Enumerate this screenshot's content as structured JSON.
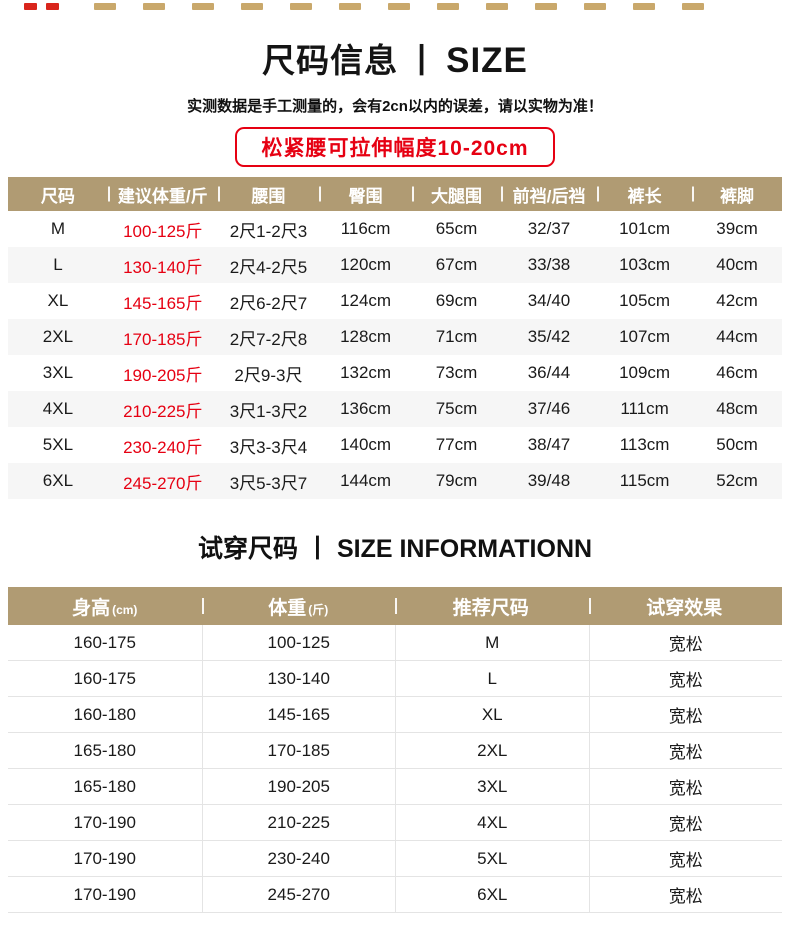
{
  "header": {
    "title_cn": "尺码信息",
    "divider": "丨",
    "title_en": "SIZE",
    "subtitle": "实测数据是手工测量的，会有2cn以内的误差，请以实物为准！",
    "stretch_badge": "松紧腰可拉伸幅度10-20cm"
  },
  "size_table": {
    "headers": [
      "尺码",
      "建议体重/斤",
      "腰围",
      "臀围",
      "大腿围",
      "前裆/后裆",
      "裤长",
      "裤脚"
    ],
    "rows": [
      {
        "size": "M",
        "weight": "100-125斤",
        "waist": "2尺1-2尺3",
        "hip": "116cm",
        "thigh": "65cm",
        "rise": "32/37",
        "length": "101cm",
        "hem": "39cm"
      },
      {
        "size": "L",
        "weight": "130-140斤",
        "waist": "2尺4-2尺5",
        "hip": "120cm",
        "thigh": "67cm",
        "rise": "33/38",
        "length": "103cm",
        "hem": "40cm"
      },
      {
        "size": "XL",
        "weight": "145-165斤",
        "waist": "2尺6-2尺7",
        "hip": "124cm",
        "thigh": "69cm",
        "rise": "34/40",
        "length": "105cm",
        "hem": "42cm"
      },
      {
        "size": "2XL",
        "weight": "170-185斤",
        "waist": "2尺7-2尺8",
        "hip": "128cm",
        "thigh": "71cm",
        "rise": "35/42",
        "length": "107cm",
        "hem": "44cm"
      },
      {
        "size": "3XL",
        "weight": "190-205斤",
        "waist": "2尺9-3尺",
        "hip": "132cm",
        "thigh": "73cm",
        "rise": "36/44",
        "length": "109cm",
        "hem": "46cm"
      },
      {
        "size": "4XL",
        "weight": "210-225斤",
        "waist": "3尺1-3尺2",
        "hip": "136cm",
        "thigh": "75cm",
        "rise": "37/46",
        "length": "111cm",
        "hem": "48cm"
      },
      {
        "size": "5XL",
        "weight": "230-240斤",
        "waist": "3尺3-3尺4",
        "hip": "140cm",
        "thigh": "77cm",
        "rise": "38/47",
        "length": "113cm",
        "hem": "50cm"
      },
      {
        "size": "6XL",
        "weight": "245-270斤",
        "waist": "3尺5-3尺7",
        "hip": "144cm",
        "thigh": "79cm",
        "rise": "39/48",
        "length": "115cm",
        "hem": "52cm"
      }
    ]
  },
  "fit_section": {
    "title_cn": "试穿尺码",
    "divider": "丨",
    "title_en": "SIZE INFORMATIONN"
  },
  "fit_table": {
    "headers": [
      {
        "label": "身高",
        "unit": "(cm)"
      },
      {
        "label": "体重",
        "unit": "(斤)"
      },
      {
        "label": "推荐尺码",
        "unit": ""
      },
      {
        "label": "试穿效果",
        "unit": ""
      }
    ],
    "rows": [
      {
        "height": "160-175",
        "weight": "100-125",
        "size": "M",
        "fit": "宽松"
      },
      {
        "height": "160-175",
        "weight": "130-140",
        "size": "L",
        "fit": "宽松"
      },
      {
        "height": "160-180",
        "weight": "145-165",
        "size": "XL",
        "fit": "宽松"
      },
      {
        "height": "165-180",
        "weight": "170-185",
        "size": "2XL",
        "fit": "宽松"
      },
      {
        "height": "165-180",
        "weight": "190-205",
        "size": "3XL",
        "fit": "宽松"
      },
      {
        "height": "170-190",
        "weight": "210-225",
        "size": "4XL",
        "fit": "宽松"
      },
      {
        "height": "170-190",
        "weight": "230-240",
        "size": "5XL",
        "fit": "宽松"
      },
      {
        "height": "170-190",
        "weight": "245-270",
        "size": "6XL",
        "fit": "宽松"
      }
    ]
  },
  "colors": {
    "table_header_bg": "#b09b73",
    "accent_red": "#e60012",
    "row_alt_bg": "#f6f6f6",
    "grid_line": "#e4e4e4",
    "strip_tan": "#c9a86b"
  }
}
